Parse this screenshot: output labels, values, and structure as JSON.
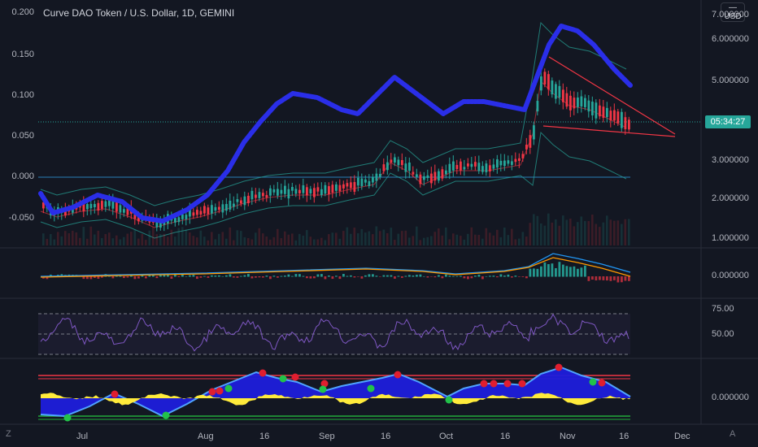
{
  "chart": {
    "title": "Curve DAO Token / U.S. Dollar, 1D, GEMINI",
    "currency_lines": [
      "—",
      "USD"
    ],
    "countdown": "05:34:27",
    "left_axis_labels": [
      "0.200",
      "0.150",
      "0.100",
      "0.050",
      "0.000",
      "-0.050"
    ],
    "right_axis_labels": [
      "7.000000",
      "6.000000",
      "5.000000",
      "3.000000",
      "2.000000",
      "1.000000"
    ],
    "macd_axis_label": "0.000000",
    "rsi_axis_labels": [
      "75.00",
      "50.00"
    ],
    "osc_axis_label": "0.000000",
    "x_axis_labels": [
      "Jul",
      "Aug",
      "16",
      "Sep",
      "16",
      "Oct",
      "16",
      "Nov",
      "16",
      "Dec"
    ],
    "corner_left": "Z",
    "corner_right": "A"
  },
  "chart_data": {
    "type": "candlestick",
    "title": "Curve DAO Token / U.S. Dollar, 1D, GEMINI",
    "interval": "1D",
    "exchange": "GEMINI",
    "right_axis_price_ticks": [
      7.0,
      6.0,
      5.0,
      3.0,
      2.0,
      1.0
    ],
    "left_axis_overlay_ticks": [
      0.2,
      0.15,
      0.1,
      0.05,
      0.0,
      -0.05
    ],
    "x_axis_ticks": [
      "Jul",
      "Aug",
      "16",
      "Sep",
      "16",
      "Oct",
      "16",
      "Nov",
      "16",
      "Dec"
    ],
    "approx_close_path": [
      {
        "x": "Jul",
        "y": 1.7
      },
      {
        "x": "Aug",
        "y": 1.85
      },
      {
        "x": "16",
        "y": 2.15
      },
      {
        "x": "Sep",
        "y": 2.3
      },
      {
        "x": "16",
        "y": 2.7
      },
      {
        "x": "Oct",
        "y": 2.8
      },
      {
        "x": "16",
        "y": 3.0
      },
      {
        "x": "Nov",
        "y": 4.6
      },
      {
        "x": "16",
        "y": 3.7
      }
    ],
    "panes": [
      "price",
      "macd",
      "rsi",
      "oscillator"
    ],
    "rsi_levels": [
      75.0,
      50.0
    ]
  }
}
